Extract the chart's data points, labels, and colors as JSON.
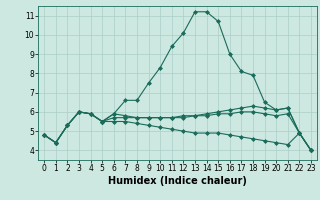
{
  "title": "",
  "xlabel": "Humidex (Indice chaleur)",
  "xlim": [
    -0.5,
    23.5
  ],
  "ylim": [
    3.5,
    11.5
  ],
  "yticks": [
    4,
    5,
    6,
    7,
    8,
    9,
    10,
    11
  ],
  "xticks": [
    0,
    1,
    2,
    3,
    4,
    5,
    6,
    7,
    8,
    9,
    10,
    11,
    12,
    13,
    14,
    15,
    16,
    17,
    18,
    19,
    20,
    21,
    22,
    23
  ],
  "bg_color": "#cce8e0",
  "grid_color": "#aacfc8",
  "line_color": "#1a6b5a",
  "lines": [
    [
      4.8,
      4.4,
      5.3,
      6.0,
      5.9,
      5.5,
      5.9,
      6.6,
      6.6,
      7.5,
      8.3,
      9.4,
      10.1,
      11.2,
      11.2,
      10.7,
      9.0,
      8.1,
      7.9,
      6.5,
      6.1,
      6.2,
      4.9,
      4.0
    ],
    [
      4.8,
      4.4,
      5.3,
      6.0,
      5.9,
      5.5,
      5.9,
      5.8,
      5.7,
      5.7,
      5.7,
      5.7,
      5.8,
      5.8,
      5.9,
      6.0,
      6.1,
      6.2,
      6.3,
      6.2,
      6.1,
      6.2,
      4.9,
      4.0
    ],
    [
      4.8,
      4.4,
      5.3,
      6.0,
      5.9,
      5.5,
      5.5,
      5.5,
      5.4,
      5.3,
      5.2,
      5.1,
      5.0,
      4.9,
      4.9,
      4.9,
      4.8,
      4.7,
      4.6,
      4.5,
      4.4,
      4.3,
      4.9,
      4.0
    ],
    [
      4.8,
      4.4,
      5.3,
      6.0,
      5.9,
      5.5,
      5.7,
      5.7,
      5.7,
      5.7,
      5.7,
      5.7,
      5.7,
      5.8,
      5.8,
      5.9,
      5.9,
      6.0,
      6.0,
      5.9,
      5.8,
      5.9,
      4.9,
      4.0
    ]
  ],
  "marker": "D",
  "markersize": 2.0,
  "linewidth": 0.8,
  "xlabel_fontsize": 7,
  "tick_fontsize": 5.5
}
